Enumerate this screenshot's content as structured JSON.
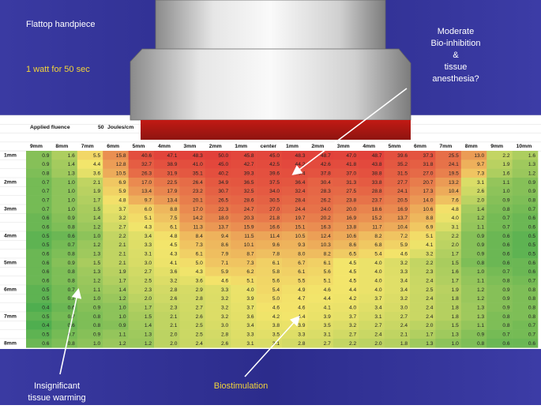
{
  "chart_data": {
    "type": "heatmap",
    "title": "Flattop handpiece",
    "subtitle": "1 watt for 50 sec",
    "fluence": {
      "label": "Applied fluence",
      "value": 50,
      "unit": "Joules/cm"
    },
    "x": [
      "9mm",
      "8mm",
      "7mm",
      "6mm",
      "5mm",
      "4mm",
      "3mm",
      "2mm",
      "1mm",
      "center",
      "1mm",
      "2mm",
      "3mm",
      "4mm",
      "5mm",
      "6mm",
      "7mm",
      "8mm",
      "9mm",
      "10mm"
    ],
    "y": [
      "1mm",
      null,
      null,
      "2mm",
      null,
      null,
      "3mm",
      null,
      null,
      "4mm",
      null,
      null,
      "5mm",
      null,
      null,
      "6mm",
      null,
      null,
      "7mm",
      null,
      null,
      "8mm"
    ],
    "values": [
      [
        0.9,
        1.6,
        5.5,
        15.8,
        40.6,
        47.1,
        48.3,
        50.0,
        45.8,
        45.0,
        48.3,
        48.7,
        47.0,
        48.7,
        39.6,
        37.3,
        25.5,
        13.0,
        2.2,
        1.6
      ],
      [
        0.9,
        1.4,
        4.4,
        12.8,
        32.7,
        38.9,
        41.0,
        45.0,
        42.7,
        42.5,
        44.2,
        42.6,
        41.8,
        43.8,
        35.2,
        31.8,
        24.1,
        9.7,
        1.9,
        1.3
      ],
      [
        0.8,
        1.3,
        3.6,
        10.5,
        26.3,
        31.9,
        35.1,
        40.2,
        39.3,
        39.6,
        40.4,
        37.8,
        37.0,
        38.8,
        31.5,
        27.0,
        19.5,
        7.3,
        1.6,
        1.2
      ],
      [
        0.7,
        1.0,
        2.1,
        6.9,
        17.0,
        22.5,
        26.4,
        34.9,
        36.5,
        37.5,
        36.4,
        30.4,
        31.3,
        33.8,
        27.7,
        20.7,
        13.2,
        3.1,
        1.1,
        0.9
      ],
      [
        0.7,
        1.0,
        1.9,
        5.9,
        13.4,
        17.9,
        23.2,
        30.7,
        32.5,
        34.0,
        32.4,
        28.3,
        27.5,
        28.8,
        24.1,
        17.3,
        10.4,
        2.6,
        1.0,
        0.9
      ],
      [
        0.7,
        1.0,
        1.7,
        4.8,
        9.7,
        13.4,
        20.1,
        26.5,
        28.6,
        30.5,
        28.4,
        26.2,
        23.8,
        23.7,
        20.5,
        14.0,
        7.6,
        2.0,
        0.9,
        0.8
      ],
      [
        0.7,
        1.0,
        1.5,
        3.7,
        6.0,
        8.8,
        17.0,
        22.3,
        24.7,
        27.0,
        24.4,
        24.0,
        20.0,
        18.6,
        16.9,
        10.6,
        4.8,
        1.4,
        0.8,
        0.7
      ],
      [
        0.6,
        0.9,
        1.4,
        3.2,
        5.1,
        7.5,
        14.2,
        18.0,
        20.3,
        21.8,
        19.7,
        20.2,
        16.9,
        15.2,
        13.7,
        8.8,
        4.0,
        1.2,
        0.7,
        0.6
      ],
      [
        0.6,
        0.8,
        1.2,
        2.7,
        4.3,
        6.1,
        11.3,
        13.7,
        15.9,
        16.6,
        15.1,
        16.3,
        13.8,
        11.7,
        10.4,
        6.9,
        3.1,
        1.1,
        0.7,
        0.6
      ],
      [
        0.5,
        0.6,
        1.0,
        2.2,
        3.4,
        4.8,
        8.4,
        9.4,
        11.5,
        11.4,
        10.5,
        12.4,
        10.6,
        8.2,
        7.2,
        5.1,
        2.2,
        0.9,
        0.6,
        0.5
      ],
      [
        0.5,
        0.7,
        1.2,
        2.1,
        3.3,
        4.5,
        7.3,
        8.6,
        10.1,
        9.6,
        9.3,
        10.3,
        8.6,
        6.8,
        5.9,
        4.1,
        2.0,
        0.9,
        0.6,
        0.5
      ],
      [
        0.6,
        0.8,
        1.3,
        2.1,
        3.1,
        4.3,
        6.1,
        7.9,
        8.7,
        7.8,
        8.0,
        8.2,
        6.5,
        5.4,
        4.6,
        3.2,
        1.7,
        0.9,
        0.6,
        0.5
      ],
      [
        0.6,
        0.9,
        1.5,
        2.1,
        3.0,
        4.1,
        5.0,
        7.1,
        7.3,
        6.1,
        6.7,
        6.1,
        4.5,
        4.0,
        3.2,
        2.2,
        1.5,
        0.8,
        0.6,
        0.6
      ],
      [
        0.6,
        0.8,
        1.3,
        1.9,
        2.7,
        3.6,
        4.3,
        5.9,
        6.2,
        5.8,
        6.1,
        5.6,
        4.5,
        4.0,
        3.3,
        2.3,
        1.6,
        1.0,
        0.7,
        0.6
      ],
      [
        0.6,
        0.8,
        1.2,
        1.7,
        2.5,
        3.2,
        3.6,
        4.6,
        5.1,
        5.6,
        5.5,
        5.1,
        4.5,
        4.0,
        3.4,
        2.4,
        1.7,
        1.1,
        0.8,
        0.7
      ],
      [
        0.5,
        0.7,
        1.1,
        1.4,
        2.3,
        2.8,
        2.9,
        3.3,
        4.0,
        5.4,
        4.9,
        4.6,
        4.4,
        4.0,
        3.4,
        2.5,
        1.9,
        1.2,
        0.9,
        0.8
      ],
      [
        0.5,
        0.7,
        1.0,
        1.2,
        2.0,
        2.6,
        2.8,
        3.2,
        3.9,
        5.0,
        4.7,
        4.4,
        4.2,
        3.7,
        3.2,
        2.4,
        1.8,
        1.2,
        0.9,
        0.8
      ],
      [
        0.4,
        0.6,
        0.9,
        1.0,
        1.7,
        2.3,
        2.7,
        3.2,
        3.7,
        4.6,
        4.6,
        4.1,
        4.0,
        3.4,
        3.0,
        2.4,
        1.8,
        1.3,
        0.9,
        0.8
      ],
      [
        0.5,
        0.7,
        0.8,
        1.0,
        1.5,
        2.1,
        2.6,
        3.2,
        3.6,
        4.2,
        4.4,
        3.9,
        3.7,
        3.1,
        2.7,
        2.4,
        1.8,
        1.3,
        0.8,
        0.8
      ],
      [
        0.4,
        0.6,
        0.8,
        0.9,
        1.4,
        2.1,
        2.5,
        3.0,
        3.4,
        3.8,
        3.9,
        3.5,
        3.2,
        2.7,
        2.4,
        2.0,
        1.5,
        1.1,
        0.8,
        0.7
      ],
      [
        0.5,
        0.7,
        0.9,
        1.1,
        1.3,
        2.0,
        2.5,
        2.8,
        3.3,
        3.5,
        3.3,
        3.1,
        2.7,
        2.4,
        2.1,
        1.7,
        1.3,
        0.9,
        0.7,
        0.7
      ],
      [
        0.6,
        0.8,
        1.0,
        1.2,
        1.2,
        2.0,
        2.4,
        2.6,
        3.1,
        3.1,
        2.8,
        2.7,
        2.2,
        2.0,
        1.8,
        1.3,
        1.0,
        0.8,
        0.6,
        0.6
      ]
    ],
    "value_labels": [
      [
        "0.9",
        "1.6",
        "5.5",
        "15.8",
        "40.6",
        "47.1",
        "48.3",
        "50.0",
        "45.8",
        "45.0",
        "48.3",
        "48.7",
        "47.0",
        "48.7",
        "39.6",
        "37.3",
        "25.5",
        "13.0",
        "2.2",
        "1.6"
      ],
      [
        "0.9",
        "1.4",
        "4.4",
        "12.8",
        "32.7",
        "38.9",
        "41.0",
        "45.0",
        "42.7",
        "42.5",
        "44.2",
        "42.6",
        "41.8",
        "43.8",
        "35.2",
        "31.8",
        "24.1",
        "9.7",
        "1.9",
        "1.3"
      ],
      [
        "0.8",
        "1.3",
        "3.6",
        "10.5",
        "26.3",
        "31.9",
        "35.1",
        "40.2",
        "39.3",
        "39.6",
        "40.4",
        "37.8",
        "37.0",
        "38.8",
        "31.5",
        "27.0",
        "19.5",
        "7.3",
        "1.6",
        "1.2"
      ],
      [
        "0.7",
        "1.0",
        "2.1",
        "6.9",
        "17.0",
        "22.5",
        "26.4",
        "34.9",
        "36.5",
        "37.5",
        "36.4",
        "30.4",
        "31.3",
        "33.8",
        "27.7",
        "20.7",
        "13.2",
        "3.1",
        "1.1",
        "0.9"
      ],
      [
        "0.7",
        "1.0",
        "1.9",
        "5.9",
        "13.4",
        "17.9",
        "23.2",
        "30.7",
        "32.5",
        "34.0",
        "32.4",
        "28.3",
        "27.5",
        "28.8",
        "24.1",
        "17.3",
        "10.4",
        "2.6",
        "1.0",
        "0.9"
      ],
      [
        "0.7",
        "1.0",
        "1.7",
        "4.8",
        "9.7",
        "13.4",
        "20.1",
        "26.5",
        "28.6",
        "30.5",
        "28.4",
        "26.2",
        "23.8",
        "23.7",
        "20.5",
        "14.0",
        "7.6",
        "2.0",
        "0.9",
        "0.8"
      ],
      [
        "0.7",
        "1.0",
        "1.5",
        "3.7",
        "6.0",
        "8.8",
        "17.0",
        "22.3",
        "24.7",
        "27.0",
        "24.4",
        "24.0",
        "20.0",
        "18.6",
        "16.9",
        "10.6",
        "4.8",
        "1.4",
        "0.8",
        "0.7"
      ],
      [
        "0.6",
        "0.9",
        "1.4",
        "3.2",
        "5.1",
        "7.5",
        "14.2",
        "18.0",
        "20.3",
        "21.8",
        "19.7",
        "20.2",
        "16.9",
        "15.2",
        "13.7",
        "8.8",
        "4.0",
        "1.2",
        "0.7",
        "0.6"
      ],
      [
        "0.6",
        "0.8",
        "1.2",
        "2.7",
        "4.3",
        "6.1",
        "11.3",
        "13.7",
        "15.9",
        "16.6",
        "15.1",
        "16.3",
        "13.8",
        "11.7",
        "10.4",
        "6.9",
        "3.1",
        "1.1",
        "0.7",
        "0.6"
      ],
      [
        "0.5",
        "0.6",
        "1.0",
        "2.2",
        "3.4",
        "4.8",
        "8.4",
        "9.4",
        "11.5",
        "11.4",
        "10.5",
        "12.4",
        "10.6",
        "8.2",
        "7.2",
        "5.1",
        "2.2",
        "0.9",
        "0.6",
        "0.5"
      ],
      [
        "0.5",
        "0.7",
        "1.2",
        "2.1",
        "3.3",
        "4.5",
        "7.3",
        "8.6",
        "10.1",
        "9.6",
        "9.3",
        "10.3",
        "8.6",
        "6.8",
        "5.9",
        "4.1",
        "2.0",
        "0.9",
        "0.6",
        "0.5"
      ],
      [
        "0.6",
        "0.8",
        "1.3",
        "2.1",
        "3.1",
        "4.3",
        "6.1",
        "7.9",
        "8.7",
        "7.8",
        "8.0",
        "8.2",
        "6.5",
        "5.4",
        "4.6",
        "3.2",
        "1.7",
        "0.9",
        "0.6",
        "0.5"
      ],
      [
        "0.6",
        "0.9",
        "1.5",
        "2.1",
        "3.0",
        "4.1",
        "5.0",
        "7.1",
        "7.3",
        "6.1",
        "6.7",
        "6.1",
        "4.5",
        "4.0",
        "3.2",
        "2.2",
        "1.5",
        "0.8",
        "0.6",
        "0.6"
      ],
      [
        "0.6",
        "0.8",
        "1.3",
        "1.9",
        "2.7",
        "3.6",
        "4.3",
        "5.9",
        "6.2",
        "5.8",
        "6.1",
        "5.6",
        "4.5",
        "4.0",
        "3.3",
        "2.3",
        "1.6",
        "1.0",
        "0.7",
        "0.6"
      ],
      [
        "0.6",
        "0.8",
        "1.2",
        "1.7",
        "2.5",
        "3.2",
        "3.6",
        "4.6",
        "5.1",
        "5.6",
        "5.5",
        "5.1",
        "4.5",
        "4.0",
        "3.4",
        "2.4",
        "1.7",
        "1.1",
        "0.8",
        "0.7"
      ],
      [
        "0.5",
        "0.7",
        "1.1",
        "1.4",
        "2.3",
        "2.8",
        "2.9",
        "3.3",
        "4.0",
        "5.4",
        "4.9",
        "4.6",
        "4.4",
        "4.0",
        "3.4",
        "2.5",
        "1.9",
        "1.2",
        "0.9",
        "0.8"
      ],
      [
        "0.5",
        "0.7",
        "1.0",
        "1.2",
        "2.0",
        "2.6",
        "2.8",
        "3.2",
        "3.9",
        "5.0",
        "4.7",
        "4.4",
        "4.2",
        "3.7",
        "3.2",
        "2.4",
        "1.8",
        "1.2",
        "0.9",
        "0.8"
      ],
      [
        "0.4",
        "0.6",
        "0.9",
        "1.0",
        "1.7",
        "2.3",
        "2.7",
        "3.2",
        "3.7",
        "4.6",
        "4.6",
        "4.1",
        "4.0",
        "3.4",
        "3.0",
        "2.4",
        "1.8",
        "1.3",
        "0.9",
        "0.8"
      ],
      [
        "0.5",
        "0.7",
        "0.8",
        "1.0",
        "1.5",
        "2.1",
        "2.6",
        "3.2",
        "3.6",
        "4.2",
        "4.4",
        "3.9",
        "3.7",
        "3.1",
        "2.7",
        "2.4",
        "1.8",
        "1.3",
        "0.8",
        "0.8"
      ],
      [
        "0.4",
        "0.6",
        "0.8",
        "0.9",
        "1.4",
        "2.1",
        "2.5",
        "3.0",
        "3.4",
        "3.8",
        "3.9",
        "3.5",
        "3.2",
        "2.7",
        "2.4",
        "2.0",
        "1.5",
        "1.1",
        "0.8",
        "0.7"
      ],
      [
        "0.5",
        "0.7",
        "0.9",
        "1.1",
        "1.3",
        "2.0",
        "2.5",
        "2.8",
        "3.3",
        "3.5",
        "3.3",
        "3.1",
        "2.7",
        "2.4",
        "2.1",
        "1.7",
        "1.3",
        "0.9",
        "0.7",
        "0.7"
      ],
      [
        "0.6",
        "0.8",
        "1.0",
        "1.2",
        "1.2",
        "2.0",
        "2.4",
        "2.6",
        "3.1",
        "3.1",
        "2.8",
        "2.7",
        "2.2",
        "2.0",
        "1.8",
        "1.3",
        "1.0",
        "0.8",
        "0.6",
        "0.6"
      ]
    ],
    "colors": [
      "#4fae4f",
      "#f3e56b",
      "#e2403a"
    ],
    "log_color": true,
    "annotations": [
      {
        "lines": [
          "Moderate",
          "Bio-inhibition",
          "&",
          "tissue",
          "anesthesia?"
        ]
      },
      {
        "lines": [
          "Insignificant",
          "tissue warming"
        ]
      },
      {
        "lines": [
          "Biostimulation"
        ]
      }
    ]
  }
}
